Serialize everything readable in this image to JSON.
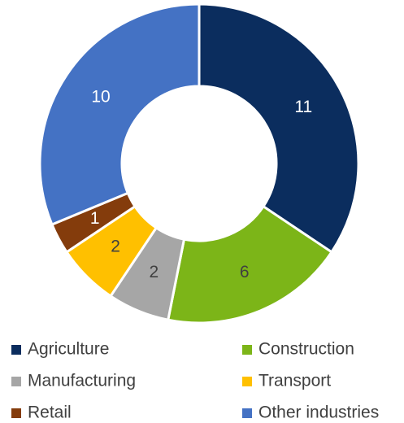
{
  "chart_data": {
    "type": "donut",
    "categories": [
      "Agriculture",
      "Construction",
      "Manufacturing",
      "Transport",
      "Retail",
      "Other industries"
    ],
    "values": [
      11,
      6,
      2,
      2,
      1,
      10
    ],
    "colors": [
      "#0b2d5e",
      "#7cb518",
      "#a6a6a6",
      "#ffc000",
      "#843c0c",
      "#4472c4"
    ],
    "legend": "bottom"
  }
}
